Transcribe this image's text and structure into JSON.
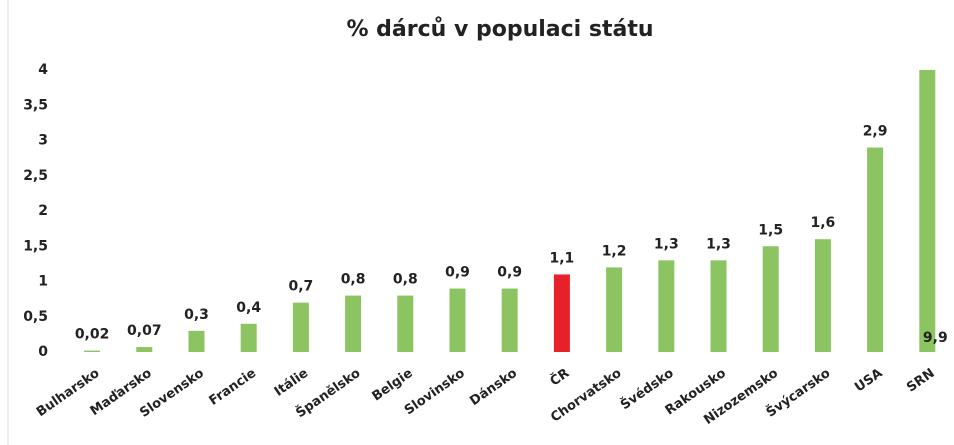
{
  "chart_data": {
    "type": "bar",
    "title": "% dárců v populaci státu",
    "categories": [
      "Bulharsko",
      "Maďarsko",
      "Slovensko",
      "Francie",
      "Itálie",
      "Španělsko",
      "Belgie",
      "Slovinsko",
      "Dánsko",
      "ČR",
      "Chorvatsko",
      "Švédsko",
      "Rakousko",
      "Nizozemsko",
      "Švýcarsko",
      "USA",
      "SRN"
    ],
    "values": [
      0.02,
      0.07,
      0.3,
      0.4,
      0.7,
      0.8,
      0.8,
      0.9,
      0.9,
      1.1,
      1.2,
      1.3,
      1.3,
      1.5,
      1.6,
      2.9,
      9.9
    ],
    "value_labels": [
      "0,02",
      "0,07",
      "0,3",
      "0,4",
      "0,7",
      "0,8",
      "0,8",
      "0,9",
      "0,9",
      "1,1",
      "1,2",
      "1,3",
      "1,3",
      "1,5",
      "1,6",
      "2,9",
      "9,9"
    ],
    "colors": [
      "#8dc462",
      "#8dc462",
      "#8dc462",
      "#8dc462",
      "#8dc462",
      "#8dc462",
      "#8dc462",
      "#8dc462",
      "#8dc462",
      "#e8202a",
      "#8dc462",
      "#8dc462",
      "#8dc462",
      "#8dc462",
      "#8dc462",
      "#8dc462",
      "#8dc462"
    ],
    "ylim": [
      0,
      4
    ],
    "yticks": [
      0,
      {
        "value": 0.5,
        "label": "0,5"
      },
      1,
      {
        "value": 1.5,
        "label": "1,5"
      },
      2,
      {
        "value": 2.5,
        "label": "2,5"
      },
      3,
      {
        "value": 3.5,
        "label": "3,5"
      },
      4
    ],
    "grid": false
  }
}
